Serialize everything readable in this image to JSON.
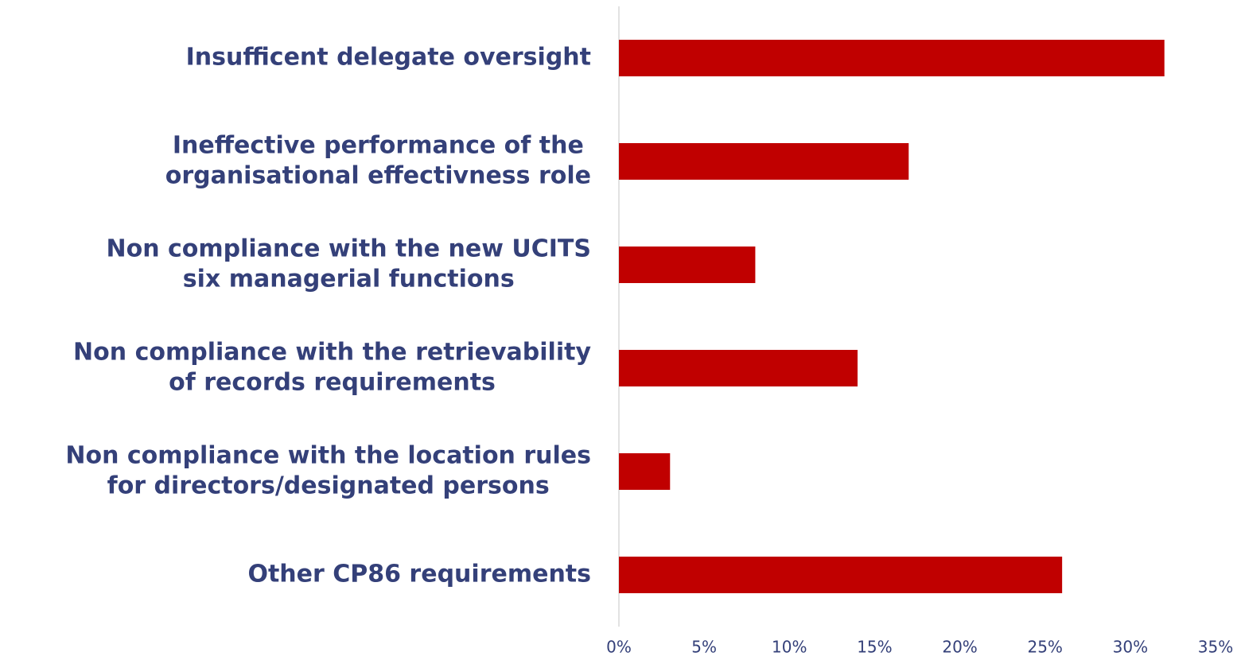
{
  "chart_data": {
    "type": "barh",
    "categories": [
      [
        "Insufficent delegate oversight"
      ],
      [
        "Ineffective performance of the",
        "organisational effectivness role"
      ],
      [
        "Non compliance with the new UCITS",
        "six managerial functions"
      ],
      [
        "Non compliance with the retrievability",
        "of records requirements"
      ],
      [
        "Non compliance with the location rules",
        "for directors/designated persons"
      ],
      [
        "Other CP86 requirements"
      ]
    ],
    "values": [
      32,
      17,
      8,
      14,
      3,
      26
    ],
    "color": "#c00000",
    "xlim": [
      0,
      35
    ],
    "xticks": [
      {
        "value": 0,
        "label": "0%"
      },
      {
        "value": 5,
        "label": "5%"
      },
      {
        "value": 10,
        "label": "10%"
      },
      {
        "value": 15,
        "label": "15%"
      },
      {
        "value": 20,
        "label": "20%"
      },
      {
        "value": 25,
        "label": "25%"
      },
      {
        "value": 30,
        "label": "30%"
      },
      {
        "value": 35,
        "label": "35%"
      }
    ]
  }
}
